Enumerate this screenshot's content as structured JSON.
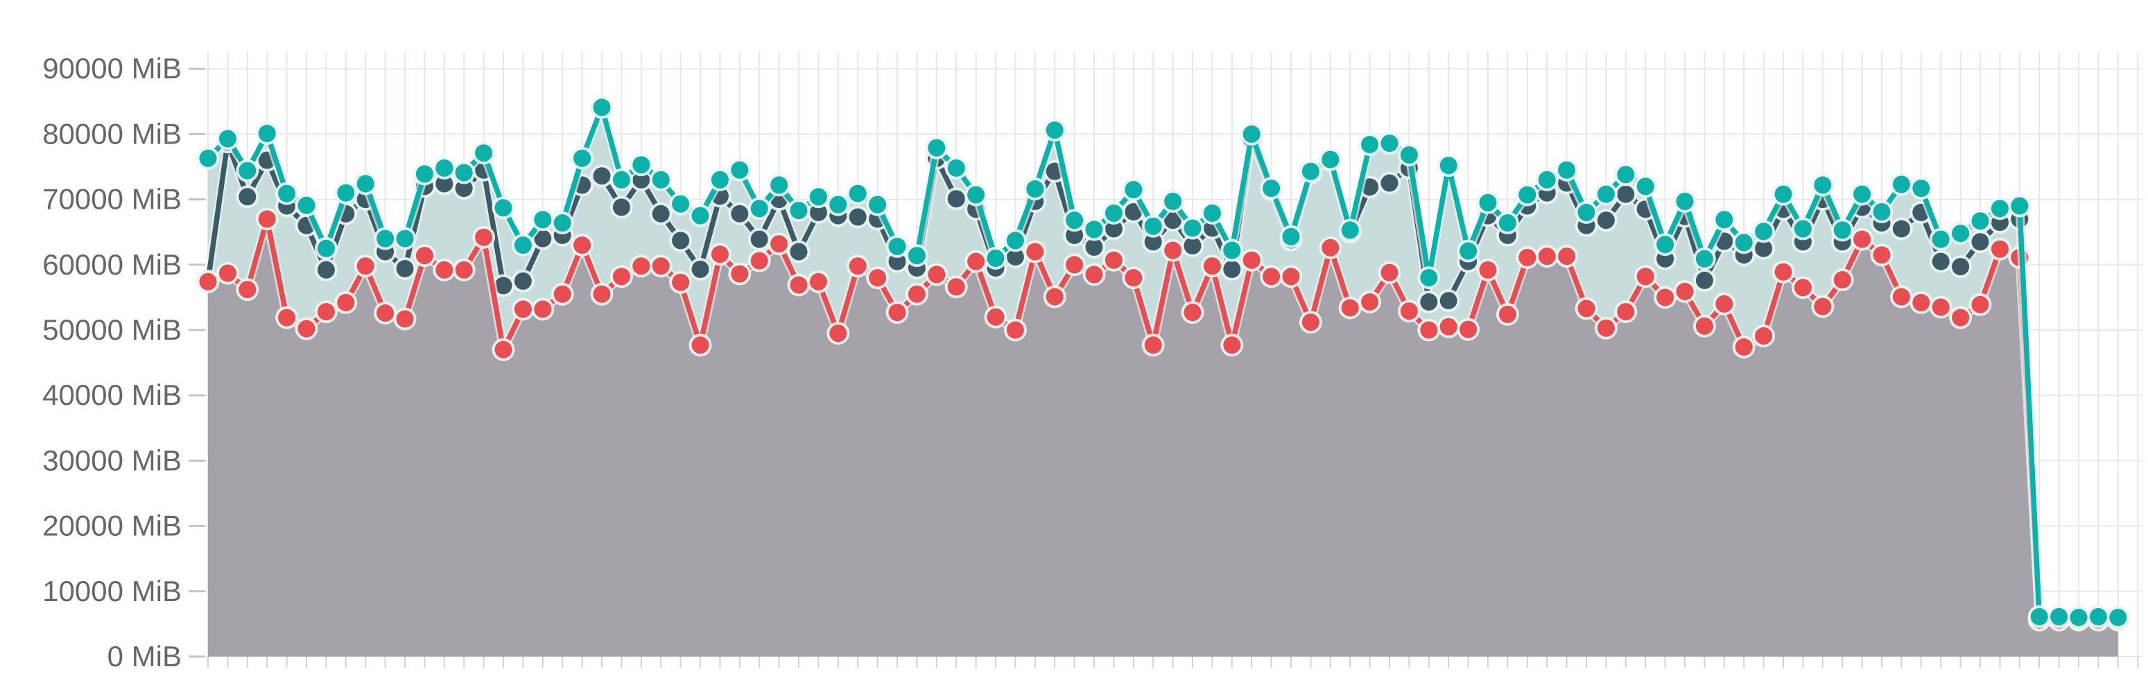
{
  "chart_data": {
    "type": "line",
    "title": "",
    "unit": "MiB",
    "legend_position": "none",
    "grid": true,
    "y_axis": {
      "min": 0,
      "max": 90000,
      "step": 10000,
      "labels": [
        "90000 MiB",
        "80000 MiB",
        "70000 MiB",
        "60000 MiB",
        "50000 MiB",
        "40000 MiB",
        "30000 MiB",
        "20000 MiB",
        "10000 MiB",
        "0 MiB"
      ]
    },
    "x_axis": {
      "labels": [],
      "points": 98
    },
    "series": [
      {
        "name": "teal",
        "color": "#0eb0aa",
        "fill_color": "#c7dcdb",
        "has_area": true,
        "values": [
          76300,
          79300,
          74400,
          80100,
          70900,
          69100,
          62500,
          71000,
          72400,
          64000,
          64000,
          73900,
          74800,
          74100,
          77100,
          68700,
          63000,
          66900,
          66400,
          76300,
          84100,
          73000,
          75300,
          73000,
          69300,
          67500,
          73000,
          74500,
          68600,
          72200,
          68300,
          70400,
          69200,
          70900,
          69200,
          62800,
          61400,
          77900,
          74800,
          70700,
          61000,
          63700,
          71600,
          80600,
          66800,
          65400,
          67900,
          71500,
          65900,
          69700,
          65600,
          67900,
          62200,
          80000,
          71700,
          64300,
          74300,
          76100,
          65300,
          78400,
          78600,
          76800,
          58000,
          75200,
          62100,
          69500,
          66400,
          70700,
          73000,
          74500,
          68000,
          70800,
          73800,
          72000,
          63100,
          69700,
          60900,
          66900,
          63400,
          65100,
          70800,
          65500,
          72200,
          65300,
          70800,
          68100,
          72300,
          71700,
          63900,
          64800,
          66700,
          68600,
          69000,
          6100,
          6100,
          6000,
          6100,
          6000
        ]
      },
      {
        "name": "dark",
        "color": "#3e5a66",
        "fill_color": null,
        "has_area": false,
        "values": [
          57500,
          78800,
          70400,
          76000,
          69000,
          66000,
          59200,
          67800,
          70000,
          62000,
          59400,
          72000,
          72400,
          71700,
          74500,
          56800,
          57500,
          64000,
          64500,
          72200,
          73600,
          68800,
          73000,
          67800,
          63700,
          59300,
          70500,
          67800,
          63900,
          70000,
          62000,
          68000,
          67500,
          67300,
          67000,
          60500,
          59500,
          76300,
          70100,
          68500,
          59500,
          61200,
          69700,
          74300,
          64500,
          62700,
          65500,
          68100,
          63500,
          66800,
          62900,
          65600,
          59300,
          79200,
          71500,
          63800,
          74000,
          76000,
          65000,
          71900,
          72500,
          74800,
          54300,
          54500,
          60500,
          67500,
          64500,
          69000,
          71000,
          72500,
          66000,
          66800,
          70800,
          68500,
          60900,
          67400,
          57600,
          63600,
          61500,
          62500,
          68500,
          63500,
          70000,
          63500,
          68800,
          66400,
          65500,
          68000,
          60500,
          59700,
          63500,
          66500,
          67000,
          5800,
          5800,
          5800,
          5800,
          5800
        ]
      },
      {
        "name": "red",
        "color": "#e84d52",
        "fill_color": "#a6a2aa",
        "has_area": true,
        "values": [
          57400,
          58700,
          56200,
          67000,
          51900,
          50200,
          52800,
          54200,
          59800,
          52600,
          51700,
          61400,
          59200,
          59200,
          64200,
          47000,
          53200,
          53200,
          55500,
          63000,
          55500,
          58200,
          59800,
          59800,
          57300,
          47700,
          61600,
          58600,
          60600,
          63200,
          56900,
          57400,
          49500,
          59800,
          58000,
          52700,
          55500,
          58500,
          56600,
          60500,
          52000,
          50000,
          62000,
          55100,
          60000,
          58500,
          60700,
          58000,
          47700,
          62200,
          52700,
          59800,
          47700,
          60700,
          58200,
          58200,
          51200,
          62600,
          53400,
          54300,
          58800,
          52900,
          50000,
          50500,
          50100,
          59200,
          52400,
          61100,
          61300,
          61300,
          53300,
          50300,
          52800,
          58200,
          55000,
          55900,
          50600,
          54000,
          47400,
          49100,
          58900,
          56500,
          53600,
          57700,
          63900,
          61500,
          55100,
          54200,
          53500,
          51900,
          53900,
          62400,
          61100,
          5600,
          5600,
          5600,
          5600,
          5600
        ]
      }
    ]
  },
  "colors": {
    "background": "#ffffff",
    "grid_vertical": "#e8e6ea",
    "grid_horizontal": "#eae8ec",
    "axis_tick": "#c5c2c8",
    "bottom_tick": "#d2cfd5",
    "label_text": "#68656c",
    "dot_halo": "#e9f4f2"
  }
}
